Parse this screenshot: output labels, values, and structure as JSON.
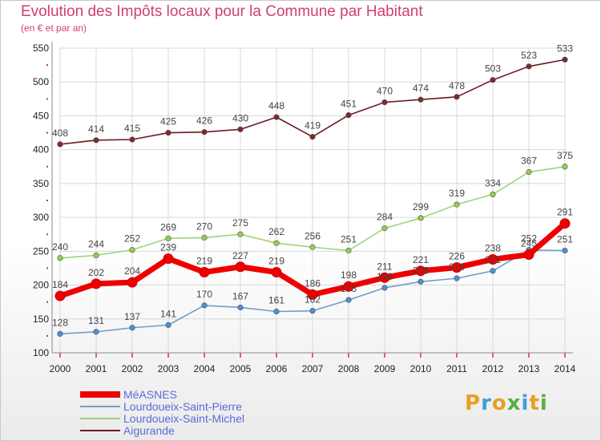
{
  "title": "Evolution des Impôts locaux pour la Commune par Habitant",
  "subtitle": "(en € et par an)",
  "logo": {
    "text": "Proxiti",
    "colors": [
      "#e8a020",
      "#3aa0d8",
      "#e8a020",
      "#58b040",
      "#3aa0d8",
      "#e8a020",
      "#58b040"
    ]
  },
  "chart_data": {
    "type": "line",
    "x": [
      "2000",
      "2001",
      "2002",
      "2003",
      "2004",
      "2005",
      "2006",
      "2007",
      "2008",
      "2009",
      "2010",
      "2011",
      "2012",
      "2013",
      "2014"
    ],
    "ylim": [
      100,
      550
    ],
    "yticks": [
      100,
      150,
      200,
      250,
      300,
      350,
      400,
      450,
      500,
      550
    ],
    "grid": true,
    "legend_position": "bottom-left",
    "series": [
      {
        "name": "Aigurande",
        "color": "#6b1a1f",
        "marker": "#7a2a2e",
        "values": [
          408,
          414,
          415,
          425,
          426,
          430,
          448,
          419,
          451,
          470,
          474,
          478,
          503,
          523,
          533
        ]
      },
      {
        "name": "Lourdoueix-Saint-Michel",
        "color": "#9fd27a",
        "marker": "#8fd050",
        "values": [
          240,
          244,
          252,
          269,
          270,
          275,
          262,
          256,
          251,
          284,
          299,
          319,
          334,
          367,
          375
        ]
      },
      {
        "name": "Lourdoueix-Saint-Pierre",
        "color": "#6f9fc8",
        "marker": "#4a90d8",
        "values": [
          128,
          131,
          137,
          141,
          170,
          167,
          161,
          162,
          178,
          196,
          205,
          210,
          221,
          252,
          251
        ]
      },
      {
        "name": "MéASNES",
        "color": "#ee0000",
        "marker": "#ee0000",
        "values": [
          184,
          202,
          204,
          239,
          219,
          227,
          219,
          186,
          198,
          211,
          221,
          226,
          238,
          245,
          291
        ]
      }
    ],
    "legend_order": [
      "MéASNES",
      "Lourdoueix-Saint-Pierre",
      "Lourdoueix-Saint-Michel",
      "Aigurande"
    ]
  }
}
